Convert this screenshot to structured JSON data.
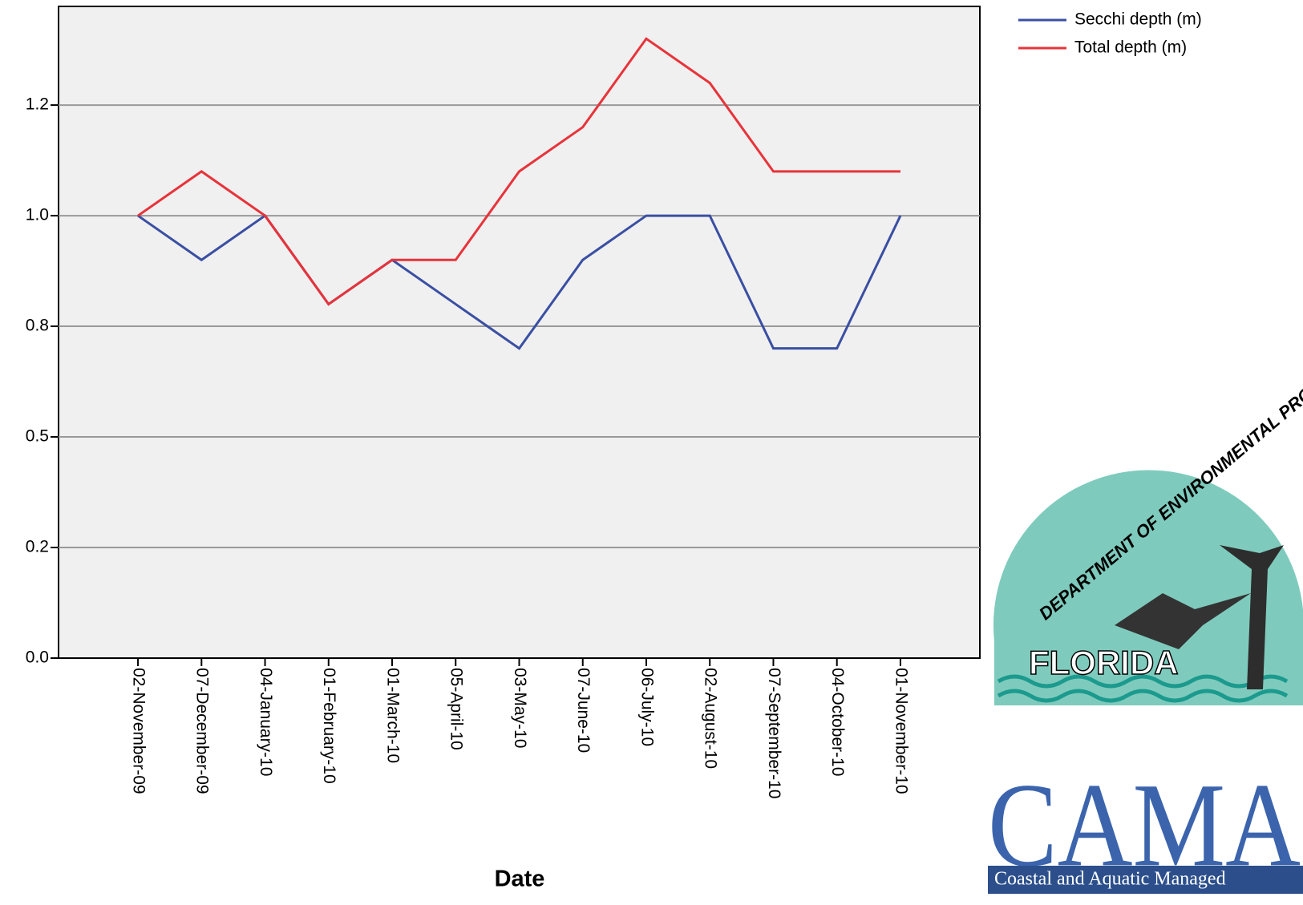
{
  "chart_data": {
    "type": "line",
    "x_label": "Date",
    "categories": [
      "02-November-09",
      "07-December-09",
      "04-January-10",
      "01-February-10",
      "01-March-10",
      "05-April-10",
      "03-May-10",
      "07-June-10",
      "06-July-10",
      "02-August-10",
      "07-September-10",
      "04-October-10",
      "01-November-10"
    ],
    "series": [
      {
        "name": "Secchi depth (m)",
        "color": "#3a4fa3",
        "values": [
          1.0,
          0.9,
          1.0,
          0.8,
          0.9,
          0.8,
          0.7,
          0.9,
          1.0,
          1.0,
          0.7,
          0.7,
          1.0
        ]
      },
      {
        "name": "Total depth (m)",
        "color": "#e8333a",
        "values": [
          1.0,
          1.1,
          1.0,
          0.8,
          0.9,
          0.9,
          1.1,
          1.2,
          1.4,
          1.3,
          1.1,
          1.1,
          1.1
        ]
      }
    ],
    "ylim": [
      0,
      1.473
    ],
    "yticks": [
      {
        "value": 0,
        "label": "0.0"
      },
      {
        "value": 0.25,
        "label": "0.2"
      },
      0.5,
      {
        "value": 0.75,
        "label": "0.8"
      },
      {
        "value": 1.0,
        "label": "1.0"
      },
      {
        "value": 1.25,
        "label": "1.2"
      }
    ],
    "grid": true,
    "legend": "top-right"
  },
  "logo": {
    "arc_text": "DEPARTMENT OF ENVIRONMENTAL PROTECTION",
    "state": "FLORIDA",
    "acronym": "CAMA",
    "caption": "Coastal and Aquatic Managed"
  }
}
